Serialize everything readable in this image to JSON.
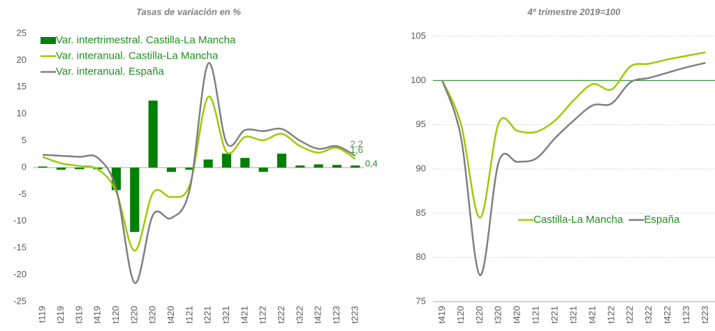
{
  "chart_data": [
    {
      "type": "bar",
      "title": "Tasas de variación en %",
      "categories": [
        "t119",
        "t219",
        "t319",
        "t419",
        "t120",
        "t220",
        "t320",
        "t420",
        "t121",
        "t221",
        "t321",
        "t421",
        "t122",
        "t222",
        "t322",
        "t422",
        "t123",
        "t223"
      ],
      "series": [
        {
          "name": "Var. intertrimestral. Castilla-La Mancha",
          "type": "bar",
          "color": "#008000",
          "values": [
            0.2,
            -0.4,
            -0.3,
            -0.3,
            -4.2,
            -12,
            12.5,
            -0.8,
            -0.4,
            1.5,
            2.6,
            1.8,
            -0.8,
            2.6,
            0.4,
            0.6,
            0.5,
            0.4
          ],
          "value_labels": [
            null,
            null,
            null,
            null,
            null,
            null,
            null,
            null,
            null,
            null,
            null,
            null,
            null,
            null,
            null,
            null,
            null,
            "0,4"
          ]
        },
        {
          "name": "Var. interanual. Castilla-La Mancha",
          "type": "line",
          "color": "#99cc00",
          "values": [
            2.0,
            0.8,
            0.3,
            -0.3,
            -4.5,
            -15.5,
            -4.7,
            -5.5,
            -3.2,
            13.2,
            2.9,
            5.7,
            5.1,
            6.3,
            4.0,
            2.8,
            3.7,
            1.6
          ],
          "value_labels": [
            null,
            null,
            null,
            null,
            null,
            null,
            null,
            null,
            null,
            null,
            null,
            null,
            null,
            null,
            null,
            null,
            null,
            "1,6"
          ]
        },
        {
          "name": "Var. interanual. España",
          "type": "line",
          "color": "#7f7f7f",
          "values": [
            2.4,
            2.2,
            2.0,
            1.8,
            -4.0,
            -21.5,
            -8.8,
            -9.4,
            -4.0,
            19.4,
            4.6,
            7.0,
            6.8,
            7.2,
            5.0,
            3.5,
            4.0,
            2.2
          ],
          "value_labels": [
            null,
            null,
            null,
            null,
            null,
            null,
            null,
            null,
            null,
            null,
            null,
            null,
            null,
            null,
            null,
            null,
            null,
            "2,2"
          ]
        }
      ],
      "ylim": [
        -25,
        25
      ],
      "yticks": [
        -25,
        -20,
        -15,
        -10,
        -5,
        0,
        5,
        10,
        15,
        20,
        25
      ],
      "grid": false,
      "legend": "upper left"
    },
    {
      "type": "line",
      "title": "4º trimestre 2019=100",
      "categories": [
        "t419",
        "t120",
        "t220",
        "t320",
        "t420",
        "t121",
        "t221",
        "t321",
        "t421",
        "t122",
        "t222",
        "t322",
        "t422",
        "t123",
        "t223"
      ],
      "series": [
        {
          "name": "Castilla-La Mancha",
          "type": "line",
          "color": "#99cc00",
          "values": [
            100,
            95,
            84.5,
            95.2,
            94.3,
            94.2,
            95.5,
            97.8,
            99.6,
            99.0,
            101.6,
            101.9,
            102.4,
            102.8,
            103.2
          ]
        },
        {
          "name": "España",
          "type": "line",
          "color": "#7f7f7f",
          "values": [
            100,
            93.5,
            78,
            90.8,
            90.8,
            91.2,
            93.5,
            95.5,
            97.2,
            97.4,
            99.8,
            100.3,
            100.9,
            101.5,
            102.0
          ]
        }
      ],
      "ylim": [
        75,
        105
      ],
      "yticks": [
        75,
        80,
        85,
        90,
        95,
        100,
        105
      ],
      "grid": true,
      "hline": 100,
      "hline_color": "#2a8a2a",
      "legend": "center right"
    }
  ]
}
